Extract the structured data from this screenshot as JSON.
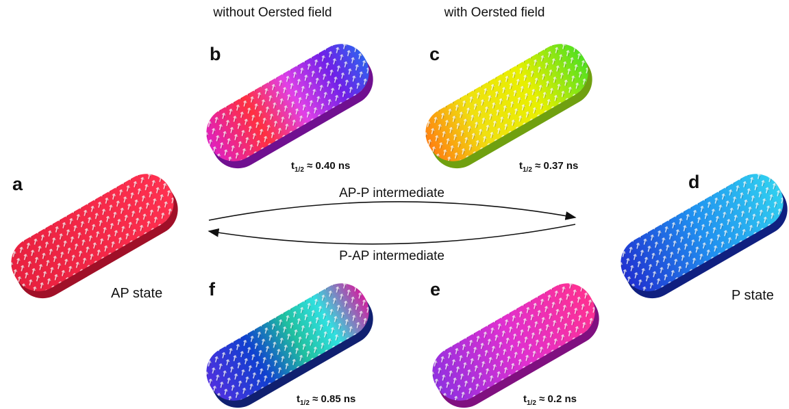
{
  "headers": {
    "left": "without Oersted field",
    "right": "with Oersted field"
  },
  "panels": {
    "a": {
      "letter": "a",
      "label": "AP state"
    },
    "b": {
      "letter": "b",
      "time": {
        "symbol": "t",
        "subscript": "1/2",
        "text": " ≈ 0.40 ns"
      }
    },
    "c": {
      "letter": "c",
      "time": {
        "symbol": "t",
        "subscript": "1/2",
        "text": " ≈ 0.37 ns"
      }
    },
    "d": {
      "letter": "d",
      "label": "P state"
    },
    "e": {
      "letter": "e",
      "time": {
        "symbol": "t",
        "subscript": "1/2",
        "text": " ≈ 0.2 ns"
      }
    },
    "f": {
      "letter": "f",
      "time": {
        "symbol": "t",
        "subscript": "1/2",
        "text": " ≈ 0.85 ns"
      }
    }
  },
  "transitions": {
    "forward": "AP-P intermediate",
    "backward": "P-AP intermediate"
  }
}
